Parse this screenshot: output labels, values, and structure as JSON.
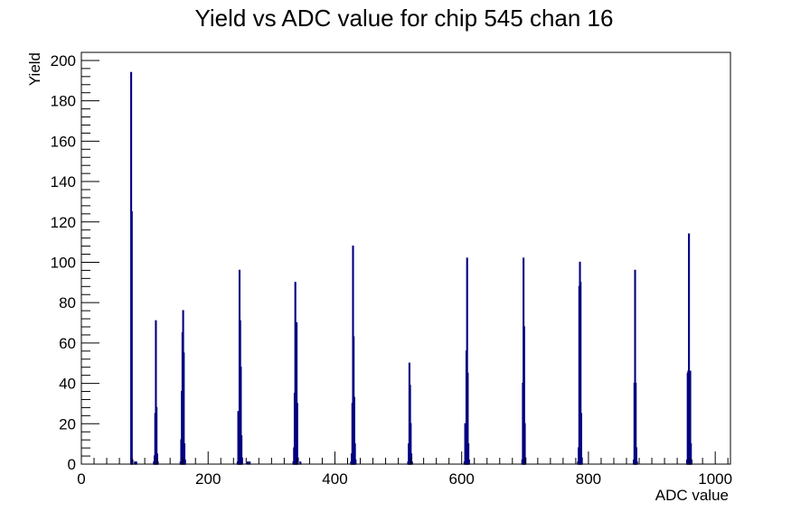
{
  "chart_data": {
    "type": "histogram",
    "title": "Yield vs ADC value for chip 545 chan 16",
    "xlabel": "ADC value",
    "ylabel": "Yield",
    "xlim": [
      0,
      1024
    ],
    "ylim": [
      0,
      204
    ],
    "x_ticks": [
      0,
      200,
      400,
      600,
      800,
      1000
    ],
    "y_ticks": [
      0,
      20,
      40,
      60,
      80,
      100,
      120,
      140,
      160,
      180,
      200
    ],
    "grid": false,
    "legend": "none",
    "line_color": "#000080",
    "bins": [
      {
        "x": 78,
        "y": 194
      },
      {
        "x": 79,
        "y": 125
      },
      {
        "x": 80,
        "y": 2
      },
      {
        "x": 84,
        "y": 1
      },
      {
        "x": 86,
        "y": 1
      },
      {
        "x": 114,
        "y": 1
      },
      {
        "x": 115,
        "y": 4
      },
      {
        "x": 116,
        "y": 25
      },
      {
        "x": 117,
        "y": 71
      },
      {
        "x": 118,
        "y": 28
      },
      {
        "x": 119,
        "y": 5
      },
      {
        "x": 120,
        "y": 1
      },
      {
        "x": 156,
        "y": 1
      },
      {
        "x": 157,
        "y": 12
      },
      {
        "x": 158,
        "y": 36
      },
      {
        "x": 159,
        "y": 65
      },
      {
        "x": 160,
        "y": 76
      },
      {
        "x": 161,
        "y": 55
      },
      {
        "x": 162,
        "y": 10
      },
      {
        "x": 163,
        "y": 2
      },
      {
        "x": 246,
        "y": 1
      },
      {
        "x": 247,
        "y": 26
      },
      {
        "x": 248,
        "y": 25
      },
      {
        "x": 249,
        "y": 96
      },
      {
        "x": 250,
        "y": 71
      },
      {
        "x": 251,
        "y": 48
      },
      {
        "x": 252,
        "y": 14
      },
      {
        "x": 253,
        "y": 3
      },
      {
        "x": 262,
        "y": 1
      },
      {
        "x": 265,
        "y": 1
      },
      {
        "x": 334,
        "y": 1
      },
      {
        "x": 335,
        "y": 8
      },
      {
        "x": 336,
        "y": 35
      },
      {
        "x": 337,
        "y": 90
      },
      {
        "x": 338,
        "y": 70
      },
      {
        "x": 339,
        "y": 70
      },
      {
        "x": 340,
        "y": 30
      },
      {
        "x": 341,
        "y": 3
      },
      {
        "x": 345,
        "y": 1
      },
      {
        "x": 425,
        "y": 1
      },
      {
        "x": 426,
        "y": 5
      },
      {
        "x": 427,
        "y": 30
      },
      {
        "x": 428,
        "y": 108
      },
      {
        "x": 429,
        "y": 63
      },
      {
        "x": 430,
        "y": 33
      },
      {
        "x": 431,
        "y": 10
      },
      {
        "x": 432,
        "y": 2
      },
      {
        "x": 515,
        "y": 1
      },
      {
        "x": 516,
        "y": 10
      },
      {
        "x": 517,
        "y": 50
      },
      {
        "x": 518,
        "y": 39
      },
      {
        "x": 519,
        "y": 20
      },
      {
        "x": 520,
        "y": 5
      },
      {
        "x": 521,
        "y": 1
      },
      {
        "x": 604,
        "y": 1
      },
      {
        "x": 605,
        "y": 20
      },
      {
        "x": 606,
        "y": 5
      },
      {
        "x": 607,
        "y": 56
      },
      {
        "x": 608,
        "y": 102
      },
      {
        "x": 609,
        "y": 45
      },
      {
        "x": 610,
        "y": 10
      },
      {
        "x": 611,
        "y": 2
      },
      {
        "x": 695,
        "y": 2
      },
      {
        "x": 696,
        "y": 40
      },
      {
        "x": 697,
        "y": 102
      },
      {
        "x": 698,
        "y": 68
      },
      {
        "x": 699,
        "y": 20
      },
      {
        "x": 700,
        "y": 3
      },
      {
        "x": 783,
        "y": 1
      },
      {
        "x": 784,
        "y": 8
      },
      {
        "x": 785,
        "y": 88
      },
      {
        "x": 786,
        "y": 100
      },
      {
        "x": 787,
        "y": 90
      },
      {
        "x": 788,
        "y": 25
      },
      {
        "x": 789,
        "y": 3
      },
      {
        "x": 871,
        "y": 2
      },
      {
        "x": 872,
        "y": 40
      },
      {
        "x": 873,
        "y": 96
      },
      {
        "x": 874,
        "y": 40
      },
      {
        "x": 875,
        "y": 8
      },
      {
        "x": 876,
        "y": 1
      },
      {
        "x": 955,
        "y": 2
      },
      {
        "x": 956,
        "y": 45
      },
      {
        "x": 957,
        "y": 46
      },
      {
        "x": 958,
        "y": 114
      },
      {
        "x": 959,
        "y": 21
      },
      {
        "x": 960,
        "y": 46
      },
      {
        "x": 961,
        "y": 10
      },
      {
        "x": 962,
        "y": 2
      }
    ]
  }
}
